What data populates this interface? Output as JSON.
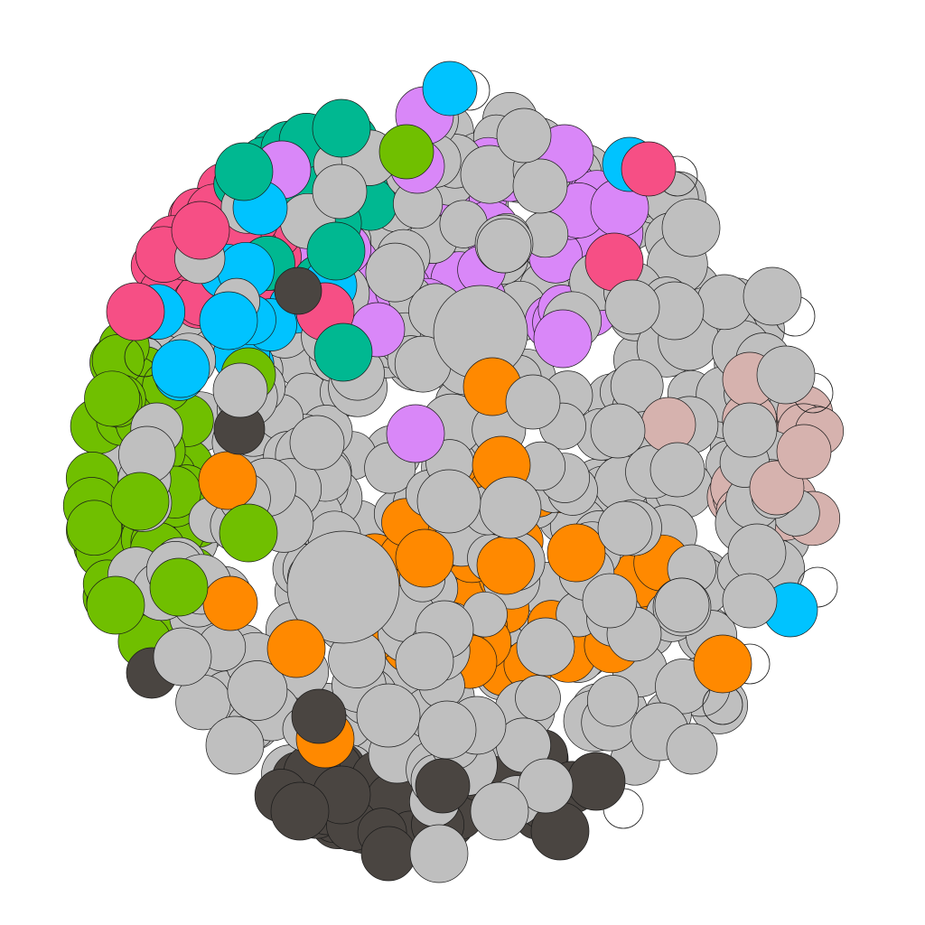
{
  "diagram": {
    "type": "packed-bubble-cluster",
    "background": "#ffffff",
    "palette": {
      "gray": "#bfbfbf",
      "dark": "#4a4541",
      "green": "#70bf00",
      "teal": "#00b891",
      "pink": "#f64f85",
      "cyan": "#00c3ff",
      "violet": "#d987f8",
      "orange": "#ff8900",
      "rose": "#d6b2ae"
    },
    "groups": [
      {
        "id": "gray",
        "color": "#bfbfbf"
      },
      {
        "id": "dark",
        "color": "#4a4541"
      },
      {
        "id": "green",
        "color": "#70bf00"
      },
      {
        "id": "teal",
        "color": "#00b891"
      },
      {
        "id": "pink",
        "color": "#f64f85"
      },
      {
        "id": "cyan",
        "color": "#00c3ff"
      },
      {
        "id": "violet",
        "color": "#d987f8"
      },
      {
        "id": "orange",
        "color": "#ff8900"
      },
      {
        "id": "rose",
        "color": "#d6b2ae"
      }
    ]
  }
}
